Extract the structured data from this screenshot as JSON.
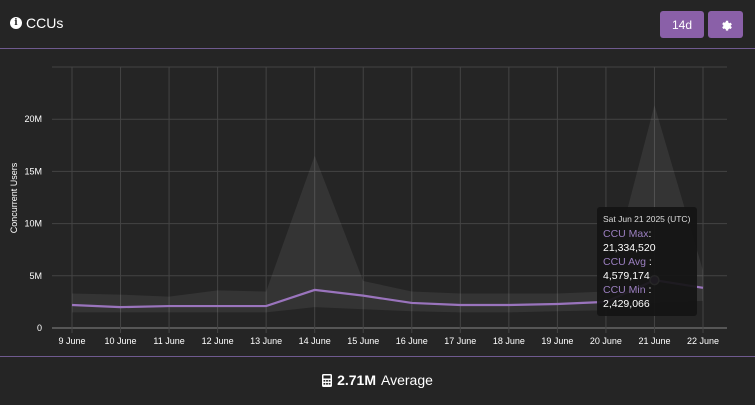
{
  "header": {
    "title": "CCUs",
    "range_button": "14d",
    "info_icon": "info-circle-icon",
    "settings_icon": "gear-icon"
  },
  "colors": {
    "accent": "#8a60a8",
    "line": "#9a74bd",
    "background": "#252525"
  },
  "chart_data": {
    "type": "line",
    "ylabel": "Concurrent Users",
    "ylim": [
      0,
      25000000
    ],
    "yticks": [
      {
        "v": 0,
        "label": "0"
      },
      {
        "v": 5000000,
        "label": "5M"
      },
      {
        "v": 10000000,
        "label": "10M"
      },
      {
        "v": 15000000,
        "label": "15M"
      },
      {
        "v": 20000000,
        "label": "20M"
      }
    ],
    "grid": true,
    "categories": [
      "9 June",
      "10 June",
      "11 June",
      "12 June",
      "13 June",
      "14 June",
      "15 June",
      "16 June",
      "17 June",
      "18 June",
      "19 June",
      "20 June",
      "21 June",
      "22 June"
    ],
    "series": [
      {
        "name": "CCU Avg",
        "values": [
          2200000,
          2000000,
          2100000,
          2100000,
          2100000,
          3650000,
          3100000,
          2400000,
          2200000,
          2200000,
          2300000,
          2500000,
          4579174,
          3850000
        ]
      },
      {
        "name": "CCU Max",
        "values": [
          3300000,
          3200000,
          3000000,
          3600000,
          3500000,
          16500000,
          4500000,
          3500000,
          3300000,
          3300000,
          3300000,
          3500000,
          21334520,
          5500000
        ]
      },
      {
        "name": "CCU Min",
        "values": [
          1500000,
          1500000,
          1500000,
          1500000,
          1500000,
          2000000,
          1800000,
          1600000,
          1500000,
          1500000,
          1600000,
          1700000,
          2429066,
          2600000
        ]
      }
    ],
    "tooltip": {
      "date": "Sat Jun 21 2025 (UTC)",
      "rows": [
        {
          "label": "CCU Max",
          "value": "21,334,520"
        },
        {
          "label": "CCU Avg",
          "value": "4,579,174"
        },
        {
          "label": "CCU Min",
          "value": "2,429,066"
        }
      ]
    }
  },
  "footer": {
    "value": "2.71M",
    "label": "Average",
    "icon": "calculator-icon"
  }
}
